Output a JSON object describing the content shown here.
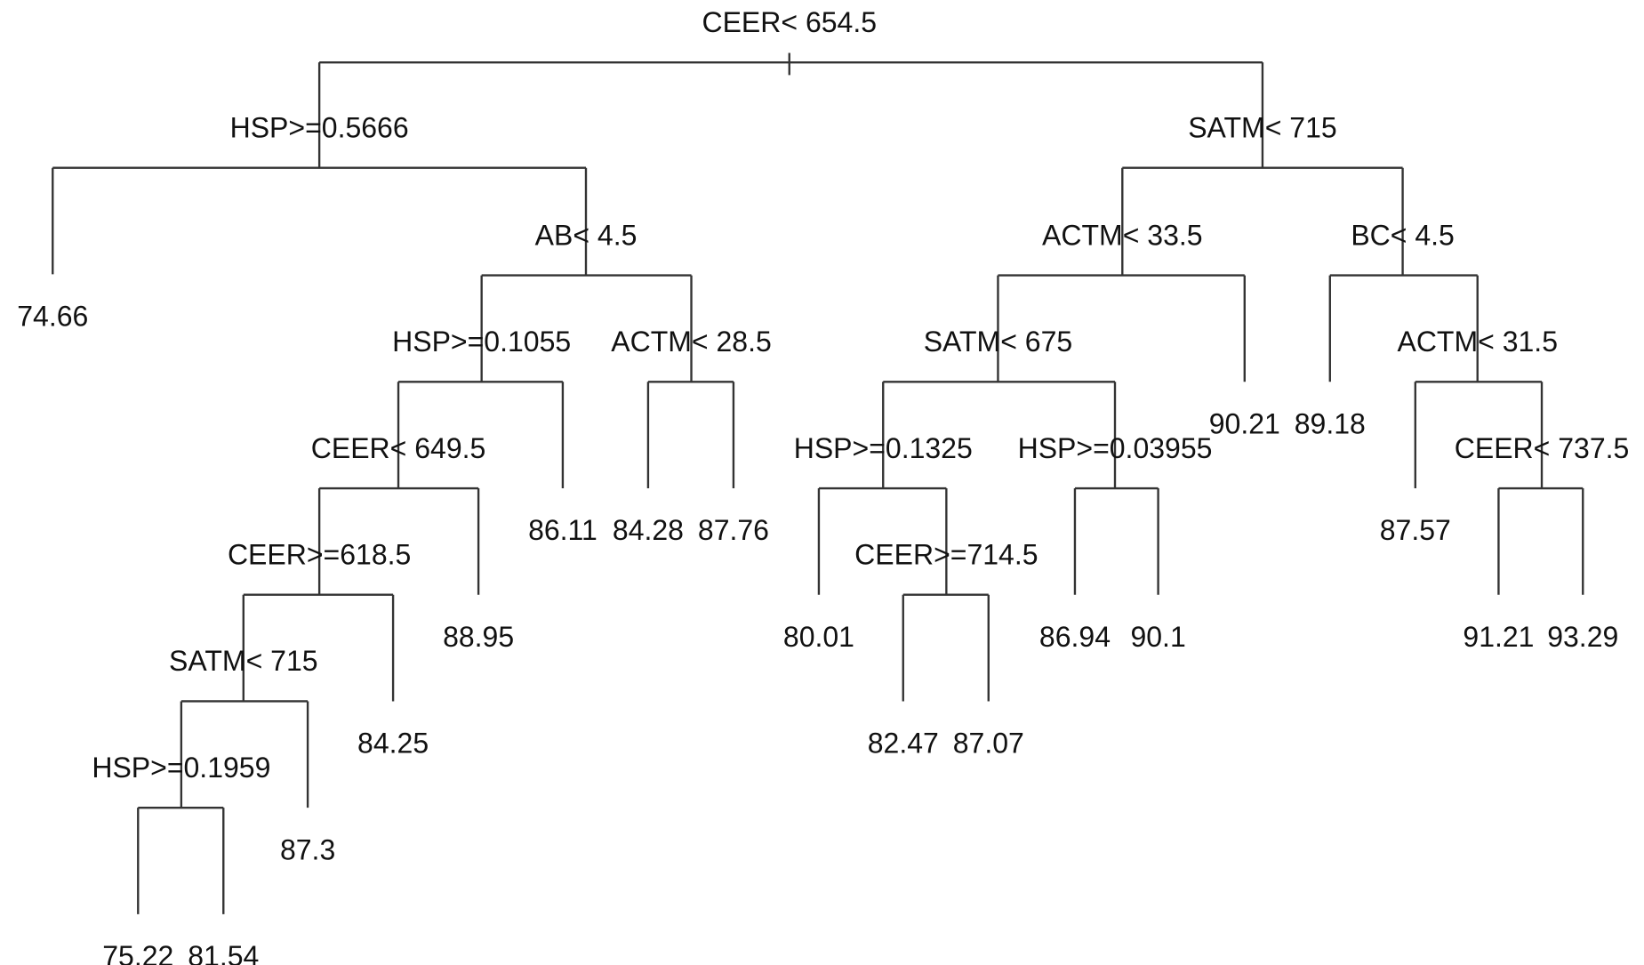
{
  "nodes": [
    {
      "label": "CEER< 654.5"
    },
    {
      "label": "HSP>=0.5666"
    },
    {
      "label": "74.66"
    },
    {
      "label": "AB< 4.5"
    },
    {
      "label": "HSP>=0.1055"
    },
    {
      "label": "CEER< 649.5"
    },
    {
      "label": "CEER>=618.5"
    },
    {
      "label": "SATM< 715"
    },
    {
      "label": "HSP>=0.1959"
    },
    {
      "label": "75.22"
    },
    {
      "label": "81.54"
    },
    {
      "label": "87.3"
    },
    {
      "label": "84.25"
    },
    {
      "label": "88.95"
    },
    {
      "label": "86.11"
    },
    {
      "label": "ACTM< 28.5"
    },
    {
      "label": "84.28"
    },
    {
      "label": "87.76"
    },
    {
      "label": "SATM< 715"
    },
    {
      "label": "ACTM< 33.5"
    },
    {
      "label": "SATM< 675"
    },
    {
      "label": "HSP>=0.1325"
    },
    {
      "label": "80.01"
    },
    {
      "label": "CEER>=714.5"
    },
    {
      "label": "82.47"
    },
    {
      "label": "87.07"
    },
    {
      "label": "HSP>=0.03955"
    },
    {
      "label": "86.94"
    },
    {
      "label": "90.1"
    },
    {
      "label": "90.21"
    },
    {
      "label": "BC< 4.5"
    },
    {
      "label": "89.18"
    },
    {
      "label": "ACTM< 31.5"
    },
    {
      "label": "87.57"
    },
    {
      "label": "CEER< 737.5"
    },
    {
      "label": "91.21"
    },
    {
      "label": "93.29"
    }
  ]
}
